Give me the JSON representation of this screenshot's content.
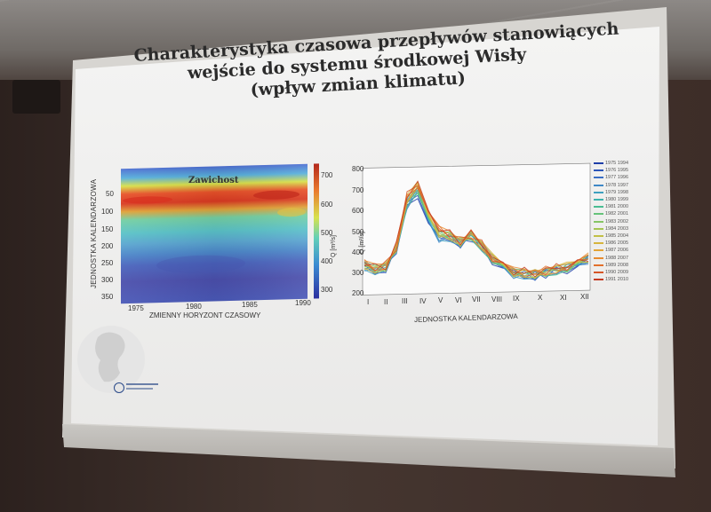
{
  "slide": {
    "title_lines": [
      "Charakterystyka czasowa przepływów stanowiących",
      "wejście do systemu środkowej Wisły",
      "(wpływ zmian klimatu)"
    ]
  },
  "heatmap": {
    "station": "Zawichost",
    "ylabel": "JEDNOSTKA KALENDARZOWA",
    "xlabel": "ZMIENNY HORYZONT CZASOWY",
    "y_ticks": [
      "50",
      "100",
      "150",
      "200",
      "250",
      "300",
      "350"
    ],
    "x_ticks": [
      "1975",
      "1980",
      "1985",
      "1990"
    ],
    "colorbar_ticks": [
      "700",
      "600",
      "500",
      "400",
      "300"
    ],
    "colorbar_label": "Q [m³/s]"
  },
  "linechart": {
    "ylabel": "Q [m³/s]",
    "xlabel": "JEDNOSTKA KALENDARZOWA",
    "y_ticks": [
      "800",
      "700",
      "600",
      "500",
      "400",
      "300",
      "200"
    ],
    "x_ticks": [
      "I",
      "II",
      "III",
      "IV",
      "V",
      "VI",
      "VII",
      "VIII",
      "IX",
      "X",
      "XI",
      "XII"
    ]
  },
  "legend": [
    {
      "label": "1975 1994",
      "color": "#1f3fa8"
    },
    {
      "label": "1976 1995",
      "color": "#2b55b8"
    },
    {
      "label": "1977 1996",
      "color": "#3a6ec4"
    },
    {
      "label": "1978 1997",
      "color": "#3f88c6"
    },
    {
      "label": "1979 1998",
      "color": "#3ea0bf"
    },
    {
      "label": "1980 1999",
      "color": "#3db3ad"
    },
    {
      "label": "1981 2000",
      "color": "#49bd92"
    },
    {
      "label": "1982 2001",
      "color": "#66c37a"
    },
    {
      "label": "1983 2002",
      "color": "#86c565"
    },
    {
      "label": "1984 2003",
      "color": "#a6c553"
    },
    {
      "label": "1985 2004",
      "color": "#c2c046"
    },
    {
      "label": "1986 2005",
      "color": "#d6b53d"
    },
    {
      "label": "1987 2006",
      "color": "#e3a436"
    },
    {
      "label": "1988 2007",
      "color": "#e78c31"
    },
    {
      "label": "1989 2008",
      "color": "#e2712c"
    },
    {
      "label": "1990 2009",
      "color": "#d65627"
    },
    {
      "label": "1991 2010",
      "color": "#c43b22"
    }
  ]
}
